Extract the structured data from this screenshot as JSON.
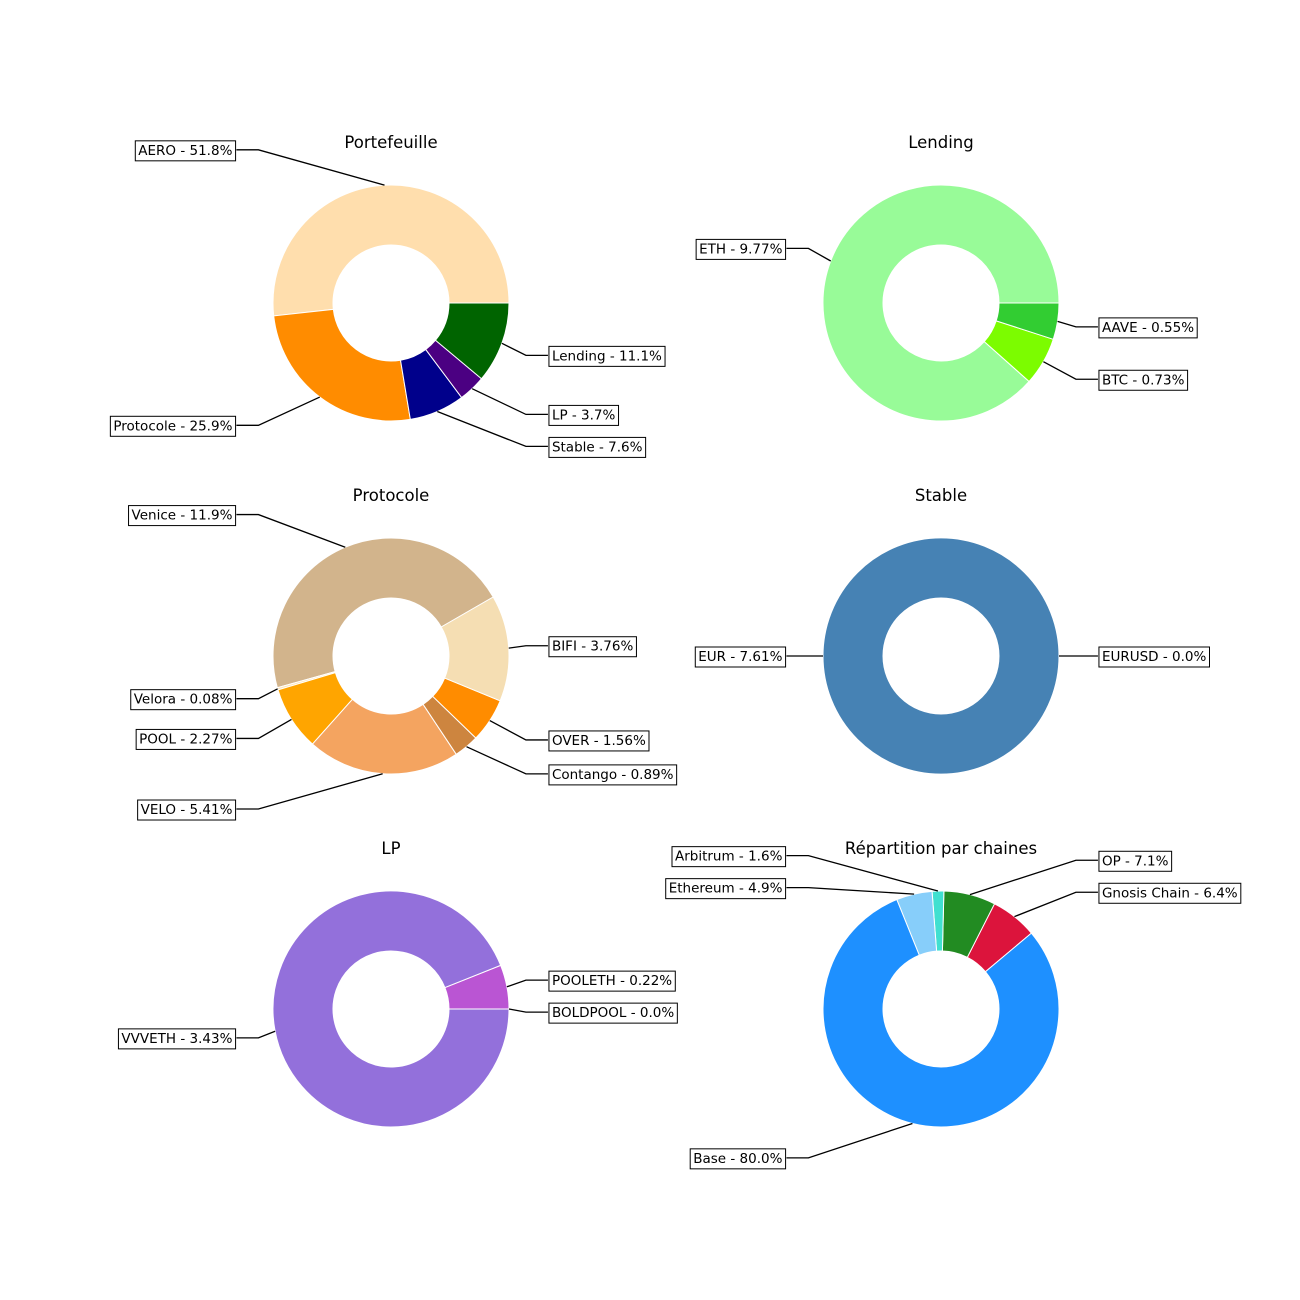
{
  "chart_data": [
    {
      "type": "pie",
      "style": "donut",
      "title": "Portefeuille",
      "slices": [
        {
          "label": "AERO - 51.8%",
          "value": 51.8,
          "color": "#FFDEAD"
        },
        {
          "label": "Protocole - 25.9%",
          "value": 25.9,
          "color": "#FF8C00"
        },
        {
          "label": "Stable - 7.6%",
          "value": 7.6,
          "color": "#00008B"
        },
        {
          "label": "LP - 3.7%",
          "value": 3.7,
          "color": "#4B0082"
        },
        {
          "label": "Lending - 11.1%",
          "value": 11.1,
          "color": "#006400"
        }
      ]
    },
    {
      "type": "pie",
      "style": "donut",
      "title": "Lending",
      "slices": [
        {
          "label": "ETH - 9.77%",
          "value": 9.77,
          "color": "#98FB98"
        },
        {
          "label": "BTC - 0.73%",
          "value": 0.73,
          "color": "#7CFC00"
        },
        {
          "label": "AAVE - 0.55%",
          "value": 0.55,
          "color": "#32CD32"
        }
      ]
    },
    {
      "type": "pie",
      "style": "donut",
      "title": "Protocole",
      "slices": [
        {
          "label": "Venice - 11.9%",
          "value": 11.9,
          "color": "#D2B48C"
        },
        {
          "label": "Velora - 0.08%",
          "value": 0.08,
          "color": "#FFE4B5"
        },
        {
          "label": "POOL - 2.27%",
          "value": 2.27,
          "color": "#FFA500"
        },
        {
          "label": "VELO - 5.41%",
          "value": 5.41,
          "color": "#F4A460"
        },
        {
          "label": "Contango - 0.89%",
          "value": 0.89,
          "color": "#CD853F"
        },
        {
          "label": "OVER - 1.56%",
          "value": 1.56,
          "color": "#FF8C00"
        },
        {
          "label": "BIFI - 3.76%",
          "value": 3.76,
          "color": "#F5DEB3"
        }
      ]
    },
    {
      "type": "pie",
      "style": "donut",
      "title": "Stable",
      "slices": [
        {
          "label": "EURUSD - 0.0%",
          "value": 0.0,
          "color": "#4682B4"
        },
        {
          "label": "EUR - 7.61%",
          "value": 7.61,
          "color": "#4682B4"
        }
      ]
    },
    {
      "type": "pie",
      "style": "donut",
      "title": "LP",
      "slices": [
        {
          "label": "BOLDPOOL - 0.0%",
          "value": 0.0,
          "color": "#9370DB"
        },
        {
          "label": "POOLETH - 0.22%",
          "value": 0.22,
          "color": "#BA55D3"
        },
        {
          "label": "VVVETH - 3.43%",
          "value": 3.43,
          "color": "#9370DB"
        }
      ]
    },
    {
      "type": "pie",
      "style": "donut",
      "title": "Répartition par chaines",
      "slices": [
        {
          "label": "Gnosis Chain - 6.4%",
          "value": 6.4,
          "color": "#DC143C"
        },
        {
          "label": "OP - 7.1%",
          "value": 7.1,
          "color": "#228B22"
        },
        {
          "label": "Arbitrum - 1.6%",
          "value": 1.6,
          "color": "#40E0D0"
        },
        {
          "label": "Ethereum - 4.9%",
          "value": 4.9,
          "color": "#87CEFA"
        },
        {
          "label": "Base - 80.0%",
          "value": 80.0,
          "color": "#1E90FF"
        }
      ]
    }
  ]
}
